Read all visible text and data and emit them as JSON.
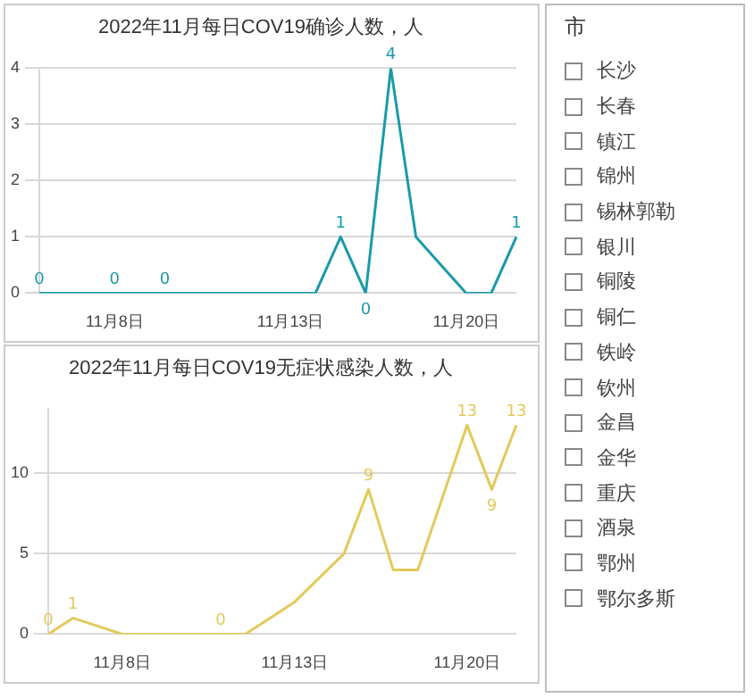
{
  "chart_data": [
    {
      "type": "line",
      "title": "2022年11月每日COV19确诊人数，人",
      "categories": [
        null,
        null,
        null,
        "11月8日",
        null,
        null,
        null,
        null,
        null,
        null,
        "11月13日",
        null,
        null,
        null,
        null,
        null,
        null,
        "11月20日",
        null,
        null
      ],
      "series": [
        {
          "color": "#1a9aa8",
          "values": [
            0,
            0,
            0,
            0,
            0,
            0,
            0,
            0,
            0,
            0,
            0,
            0,
            1,
            0,
            4,
            1,
            0.5,
            0,
            0,
            1
          ],
          "value_labels": [
            "0",
            null,
            null,
            "0",
            null,
            "0",
            null,
            null,
            null,
            null,
            null,
            null,
            "1",
            "0",
            "4",
            null,
            null,
            null,
            null,
            "1"
          ]
        }
      ],
      "ylim": [
        0,
        4
      ],
      "yticks": [
        0,
        1,
        2,
        3,
        4
      ],
      "grid": "y",
      "marker": "none"
    },
    {
      "type": "line",
      "title": "2022年11月每日COV19无症状感染人数，人",
      "categories": [
        null,
        null,
        null,
        "11月8日",
        null,
        null,
        null,
        null,
        null,
        null,
        "11月13日",
        null,
        null,
        null,
        null,
        null,
        null,
        "11月20日",
        null,
        null
      ],
      "series": [
        {
          "color": "#e3c95c",
          "values": [
            0,
            1,
            0.5,
            0,
            0,
            0,
            0,
            0,
            0,
            1,
            2,
            3.5,
            5,
            9,
            4,
            4,
            8.5,
            13,
            9,
            13
          ],
          "value_labels": [
            "0",
            "1",
            null,
            null,
            null,
            null,
            null,
            "0",
            null,
            null,
            null,
            null,
            null,
            "9",
            null,
            null,
            null,
            "13",
            "9",
            "13"
          ]
        }
      ],
      "ylim": [
        0,
        14
      ],
      "yticks": [
        0,
        5,
        10
      ],
      "grid": "y",
      "marker": "none"
    },
    {
      "type": "other",
      "title": "市",
      "annotations": [
        "长沙",
        "长春",
        "镇江",
        "锦州",
        "锡林郭勒",
        "银川",
        "铜陵",
        "铜仁",
        "铁岭",
        "钦州",
        "金昌",
        "金华",
        "重庆",
        "酒泉",
        "鄂州",
        "鄂尔多斯"
      ]
    }
  ]
}
